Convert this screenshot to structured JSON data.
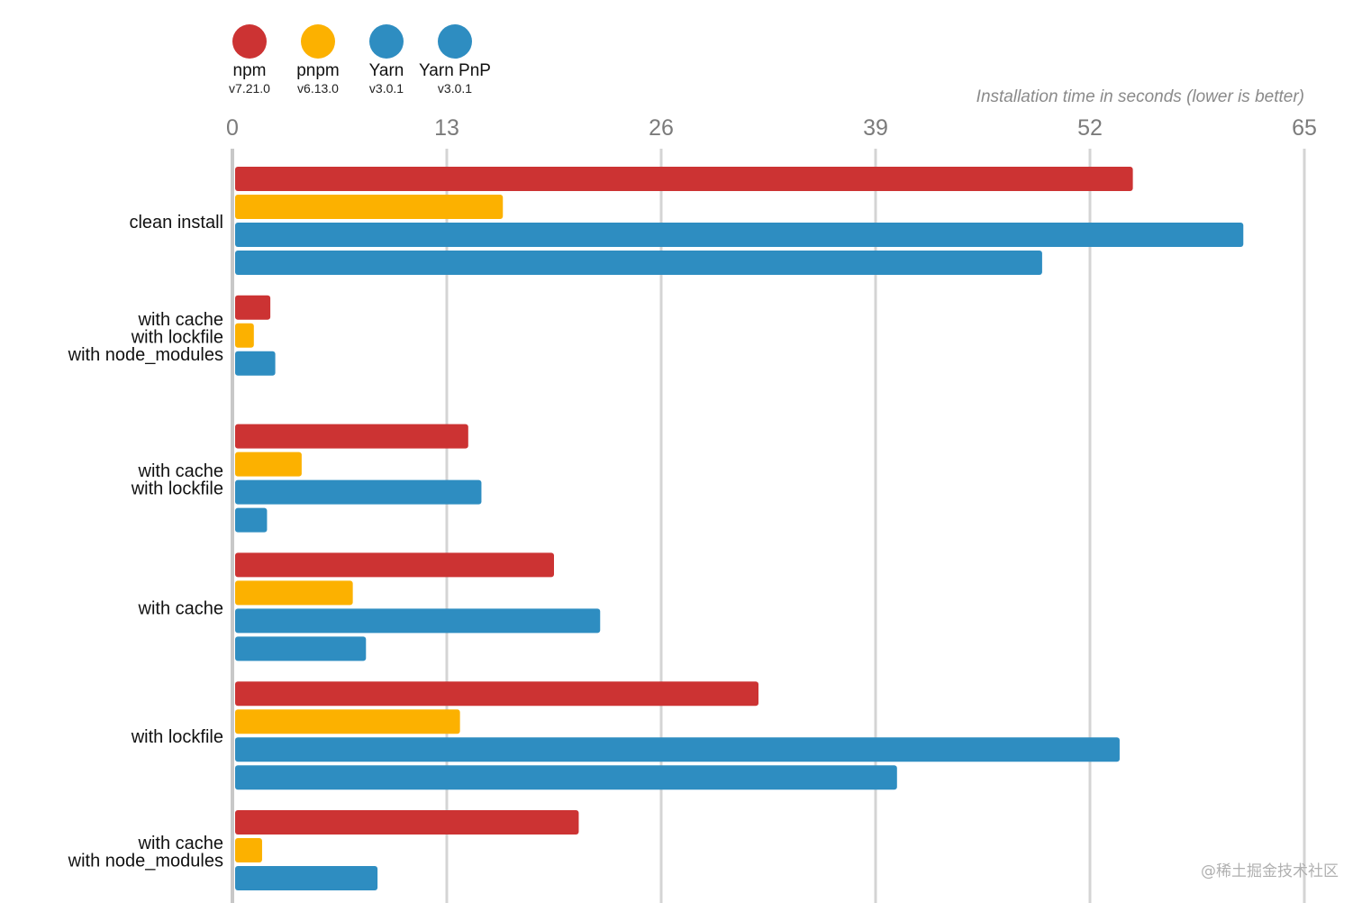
{
  "chart_data": {
    "type": "bar",
    "orientation": "horizontal",
    "subtitle": "Installation time in seconds (lower is better)",
    "x_ticks": [
      0,
      13,
      26,
      39,
      52,
      65
    ],
    "xlim": [
      0,
      65
    ],
    "grid": true,
    "legend_placement": "top-left",
    "categories": [
      "clean install",
      "with cache\nwith lockfile\nwith node_modules",
      "with cache\nwith lockfile",
      "with cache",
      "with lockfile",
      "with cache\nwith node_modules"
    ],
    "series": [
      {
        "name": "npm",
        "version": "v7.21.0",
        "color": "#cc3333",
        "values": [
          54.6,
          2.3,
          14.3,
          19.5,
          31.9,
          21.0
        ]
      },
      {
        "name": "pnpm",
        "version": "v6.13.0",
        "color": "#fcb100",
        "values": [
          16.4,
          1.3,
          4.2,
          7.3,
          13.8,
          1.8
        ]
      },
      {
        "name": "Yarn",
        "version": "v3.0.1",
        "color": "#2e8dc1",
        "values": [
          61.3,
          2.6,
          15.1,
          22.3,
          53.8,
          8.8
        ]
      },
      {
        "name": "Yarn PnP",
        "version": "v3.0.1",
        "color": "#2e8dc1",
        "values": [
          49.1,
          null,
          2.1,
          8.1,
          40.3,
          null
        ]
      }
    ]
  },
  "watermark": "@稀土掘金技术社区"
}
